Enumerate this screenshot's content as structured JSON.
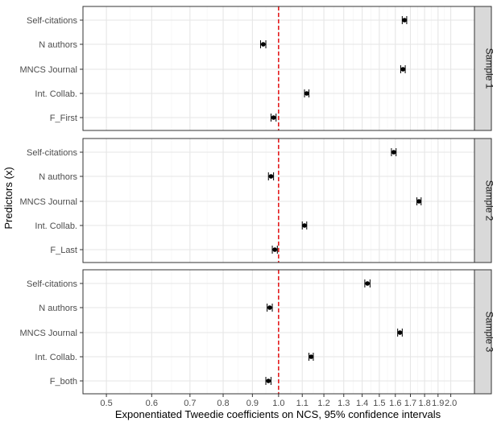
{
  "colors": {
    "grid_major": "#e6e6e6",
    "grid_minor": "#f2f2f2",
    "panel_border": "#333333",
    "strip_fill": "#d9d9d9",
    "point": "#000000",
    "reference_line": "#e41a1c"
  },
  "chart_data": {
    "type": "scatter",
    "subtype": "forest-plot (point estimates with 95% CI error bars, faceted by sample)",
    "xlabel": "Exponentiated Tweedie coefficients on NCS, 95% confidence intervals",
    "ylabel": "Predictors (x)",
    "x_scale": "log",
    "xlim": [
      0.455,
      2.2
    ],
    "x_ticks": [
      0.5,
      0.6,
      0.7,
      0.8,
      0.9,
      1.0,
      1.1,
      1.2,
      1.3,
      1.4,
      1.5,
      1.6,
      1.7,
      1.8,
      1.9,
      2.0
    ],
    "x_tick_labels": [
      "0.5",
      "0.6",
      "0.7",
      "0.8",
      "0.9",
      "1.0",
      "1.1",
      "1.2",
      "1.3",
      "1.4",
      "1.5",
      "1.6",
      "1.7",
      "1.8",
      "1.9",
      "2.0"
    ],
    "reference_line": {
      "x": 1.0,
      "style": "dashed",
      "color": "red"
    },
    "grid": true,
    "panels": [
      {
        "label": "Sample 1",
        "predictors": [
          "Self-citations",
          "N authors",
          "MNCS Journal",
          "Int. Collab.",
          "F_First"
        ],
        "estimate": [
          1.66,
          0.94,
          1.65,
          1.12,
          0.98
        ],
        "ci_low": [
          1.645,
          0.93,
          1.635,
          1.11,
          0.97
        ],
        "ci_high": [
          1.675,
          0.95,
          1.665,
          1.13,
          0.99
        ]
      },
      {
        "label": "Sample 2",
        "predictors": [
          "Self-citations",
          "N authors",
          "MNCS Journal",
          "Int. Collab.",
          "F_Last"
        ],
        "estimate": [
          1.59,
          0.97,
          1.76,
          1.11,
          0.985
        ],
        "ci_low": [
          1.575,
          0.96,
          1.745,
          1.1,
          0.975
        ],
        "ci_high": [
          1.605,
          0.98,
          1.775,
          1.12,
          0.995
        ]
      },
      {
        "label": "Sample 3",
        "predictors": [
          "Self-citations",
          "N authors",
          "MNCS Journal",
          "Int. Collab.",
          "F_both"
        ],
        "estimate": [
          1.43,
          0.965,
          1.63,
          1.14,
          0.96
        ],
        "ci_low": [
          1.415,
          0.955,
          1.615,
          1.13,
          0.95
        ],
        "ci_high": [
          1.445,
          0.975,
          1.645,
          1.15,
          0.97
        ]
      }
    ]
  }
}
